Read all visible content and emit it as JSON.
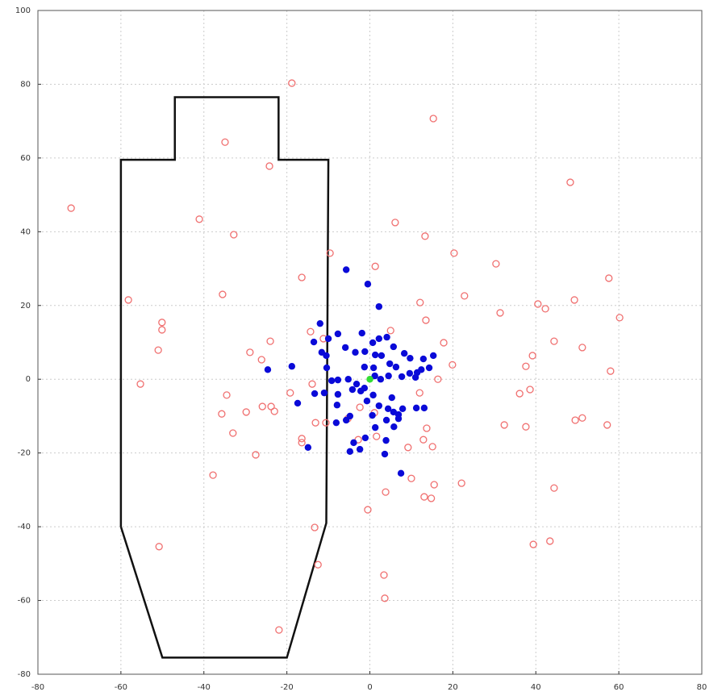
{
  "chart_data": {
    "type": "scatter",
    "xlim": [
      -80,
      80
    ],
    "ylim": [
      -80,
      100
    ],
    "xticks": [
      -80,
      -60,
      -40,
      -20,
      0,
      20,
      40,
      60,
      80
    ],
    "yticks": [
      -80,
      -60,
      -40,
      -20,
      0,
      20,
      40,
      60,
      80,
      100
    ],
    "grid": true,
    "outline": {
      "color": "#111111",
      "x": [
        -60,
        -60,
        -47,
        -47,
        -22,
        -22,
        -10,
        -10.5,
        -20,
        -50,
        -60
      ],
      "y": [
        -40,
        59.5,
        59.5,
        76.5,
        76.5,
        59.5,
        59.5,
        -39,
        -75.5,
        -75.5,
        -40
      ]
    },
    "series": [
      {
        "color": "#f07070",
        "marker": "open",
        "x": [
          -18.8,
          15.3,
          -34.9,
          -24.2,
          -72,
          -41.1,
          -32.8,
          6.1,
          13.3,
          48.3,
          -9.6,
          1.3,
          20.3,
          30.4,
          -16.4,
          57.6,
          -58.2,
          -35.5,
          12.1,
          22.8,
          31.4,
          40.5,
          42.3,
          49.3,
          60.2,
          -50.1,
          -50.1,
          -14.3,
          -11.2,
          5,
          13.5,
          17.8,
          -24,
          -51,
          -28.9,
          -26.1,
          39.2,
          44.4,
          51.2,
          37.6,
          19.9,
          16.4,
          58,
          -55.3,
          -13.9,
          -34.5,
          -19.2,
          36.1,
          38.6,
          -35.7,
          -29.8,
          -25.9,
          -23.8,
          -23,
          -2.4,
          12,
          -13.1,
          -10.6,
          -5.3,
          -33,
          -27.5,
          -16.4,
          -16.4,
          1.6,
          -2.8,
          9.2,
          12.9,
          13.7,
          15.1,
          32.4,
          37.6,
          49.5,
          51.2,
          57.2,
          -37.8,
          10,
          15.5,
          22.1,
          3.8,
          13.1,
          14.8,
          44.4,
          -0.5,
          -13.3,
          -50.8,
          39.4,
          43.4,
          -12.5,
          3.4,
          3.6,
          -21.9,
          1.1
        ],
        "values": [
          80.3,
          70.7,
          64.3,
          57.8,
          46.4,
          43.4,
          39.2,
          42.5,
          38.8,
          53.4,
          34.2,
          30.6,
          34.2,
          31.3,
          27.6,
          27.4,
          21.5,
          23,
          20.8,
          22.6,
          18,
          20.4,
          19.1,
          21.5,
          16.7,
          15.4,
          13.4,
          12.9,
          11,
          13.2,
          16,
          9.9,
          10.3,
          7.9,
          7.3,
          5.3,
          6.4,
          10.3,
          8.6,
          3.5,
          3.9,
          0,
          2.2,
          -1.3,
          -1.3,
          -4.3,
          -3.7,
          -3.9,
          -2.8,
          -9.4,
          -8.9,
          -7.4,
          -7.4,
          -8.7,
          -7.6,
          -3.7,
          -11.8,
          -11.8,
          -10.7,
          -14.6,
          -20.5,
          -16.1,
          -17.2,
          -15.5,
          -16.4,
          -18.5,
          -16.4,
          -13.3,
          -18.3,
          -12.4,
          -12.9,
          -11.1,
          -10.5,
          -12.4,
          -26,
          -26.9,
          -28.6,
          -28.2,
          -30.6,
          -31.9,
          -32.3,
          -29.5,
          -35.4,
          -40.2,
          -45.4,
          -44.8,
          -43.9,
          -50.3,
          -53.1,
          -59.4,
          -68,
          -9.1
        ]
      },
      {
        "color": "#0a0ad8",
        "marker": "filled",
        "x": [
          -5.7,
          -0.5,
          2.2,
          -12,
          -7.7,
          -13.5,
          -10,
          -1.9,
          2.2,
          4.1,
          5.7,
          0.7,
          -5.9,
          -3.5,
          -1.2,
          1.3,
          2.8,
          8.3,
          -11.6,
          -10.5,
          12.9,
          15.3,
          -18.8,
          -24.6,
          4.8,
          0.9,
          -10.4,
          11.4,
          12.4,
          14.3,
          7.7,
          4.5,
          1.2,
          2.6,
          -9.2,
          -7.7,
          -5.2,
          -3.2,
          -1.3,
          -4.2,
          -2.2,
          -11,
          -13.3,
          -7.7,
          0.8,
          -17.4,
          5.3,
          -0.7,
          -7.9,
          2.2,
          4.4,
          11.2,
          13.1,
          5.7,
          6.9,
          7.9,
          0.6,
          -4.8,
          -5.7,
          -8.1,
          6.9,
          4,
          1.3,
          5.8,
          -1.1,
          -3.9,
          3.9,
          -14.9,
          -4.8,
          -2.4,
          3.6,
          7.5,
          9.6,
          11,
          6.3,
          -1.3,
          9.7
        ],
        "values": [
          29.7,
          25.8,
          19.7,
          15.1,
          12.3,
          10.1,
          11,
          12.5,
          11,
          11.4,
          8.8,
          9.9,
          8.6,
          7.3,
          7.5,
          6.6,
          6.4,
          7,
          7.3,
          6.4,
          5.5,
          6.4,
          3.5,
          2.6,
          4.2,
          3.1,
          3.1,
          1.8,
          2.6,
          3.1,
          0.7,
          0.9,
          0.9,
          0,
          -0.4,
          -0.2,
          0,
          -1.3,
          -2.4,
          -2.8,
          -3.2,
          -3.7,
          -3.9,
          -4.1,
          -4.3,
          -6.5,
          -5,
          -5.9,
          -7,
          -7.2,
          -8,
          -7.8,
          -7.8,
          -8.9,
          -9.6,
          -8,
          -9.8,
          -10,
          -11.1,
          -11.8,
          -10.7,
          -11.1,
          -13.1,
          -12.9,
          -15.9,
          -17.2,
          -16.6,
          -18.5,
          -19.6,
          -19,
          -20.3,
          -25.5,
          1.6,
          0.5,
          3.3,
          3.3,
          5.7
        ]
      },
      {
        "color": "#33dd33",
        "marker": "filled",
        "x": [
          0
        ],
        "values": [
          0
        ]
      }
    ]
  }
}
